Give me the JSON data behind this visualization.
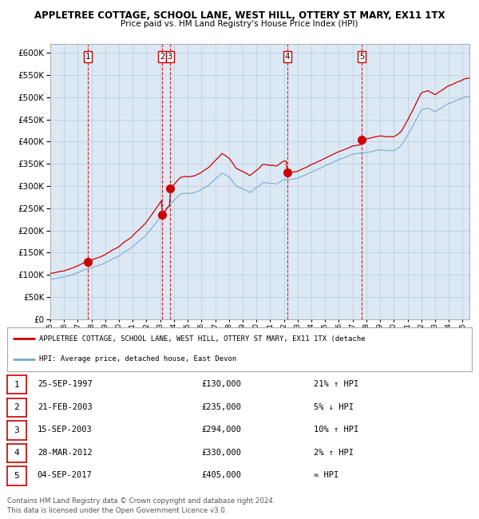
{
  "title_line1": "APPLETREE COTTAGE, SCHOOL LANE, WEST HILL, OTTERY ST MARY, EX11 1TX",
  "title_line2": "Price paid vs. HM Land Registry's House Price Index (HPI)",
  "plot_bg_color": "#dce9f5",
  "fig_bg_color": "#ffffff",
  "yticks": [
    0,
    50000,
    100000,
    150000,
    200000,
    250000,
    300000,
    350000,
    400000,
    450000,
    500000,
    550000,
    600000
  ],
  "ylim": [
    0,
    620000
  ],
  "xlim_start": 1995.0,
  "xlim_end": 2025.5,
  "sale_points": [
    {
      "label": "1",
      "date_x": 1997.73,
      "price": 130000
    },
    {
      "label": "2",
      "date_x": 2003.13,
      "price": 235000
    },
    {
      "label": "3",
      "date_x": 2003.71,
      "price": 294000
    },
    {
      "label": "4",
      "date_x": 2012.24,
      "price": 330000
    },
    {
      "label": "5",
      "date_x": 2017.67,
      "price": 405000
    }
  ],
  "legend_line1": "APPLETREE COTTAGE, SCHOOL LANE, WEST HILL, OTTERY ST MARY, EX11 1TX (detache",
  "legend_line2": "HPI: Average price, detached house, East Devon",
  "table_rows": [
    {
      "num": "1",
      "date": "25-SEP-1997",
      "price": "£130,000",
      "note": "21% ↑ HPI"
    },
    {
      "num": "2",
      "date": "21-FEB-2003",
      "price": "£235,000",
      "note": "5% ↓ HPI"
    },
    {
      "num": "3",
      "date": "15-SEP-2003",
      "price": "£294,000",
      "note": "10% ↑ HPI"
    },
    {
      "num": "4",
      "date": "28-MAR-2012",
      "price": "£330,000",
      "note": "2% ↑ HPI"
    },
    {
      "num": "5",
      "date": "04-SEP-2017",
      "price": "£405,000",
      "note": "≈ HPI"
    }
  ],
  "footer_line1": "Contains HM Land Registry data © Crown copyright and database right 2024.",
  "footer_line2": "This data is licensed under the Open Government Licence v3.0.",
  "red_line_color": "#cc0000",
  "blue_line_color": "#7aabcf",
  "dashed_line_color": "#cc0000",
  "hpi_anchors_x": [
    1995.0,
    1996.0,
    1997.0,
    1998.0,
    1999.0,
    2000.0,
    2001.0,
    2002.0,
    2003.0,
    2003.5,
    2004.5,
    2005.5,
    2006.5,
    2007.5,
    2008.0,
    2008.5,
    2009.5,
    2010.5,
    2011.5,
    2012.0,
    2013.0,
    2014.0,
    2015.0,
    2016.0,
    2017.0,
    2018.0,
    2019.0,
    2020.0,
    2020.5,
    2021.0,
    2022.0,
    2022.5,
    2023.0,
    2024.0,
    2025.3
  ],
  "hpi_anchors_y": [
    90000,
    93000,
    102000,
    115000,
    128000,
    143000,
    165000,
    192000,
    228000,
    252000,
    282000,
    286000,
    302000,
    330000,
    322000,
    302000,
    285000,
    308000,
    305000,
    315000,
    318000,
    332000,
    348000,
    362000,
    375000,
    380000,
    388000,
    385000,
    395000,
    420000,
    475000,
    480000,
    472000,
    490000,
    505000
  ]
}
